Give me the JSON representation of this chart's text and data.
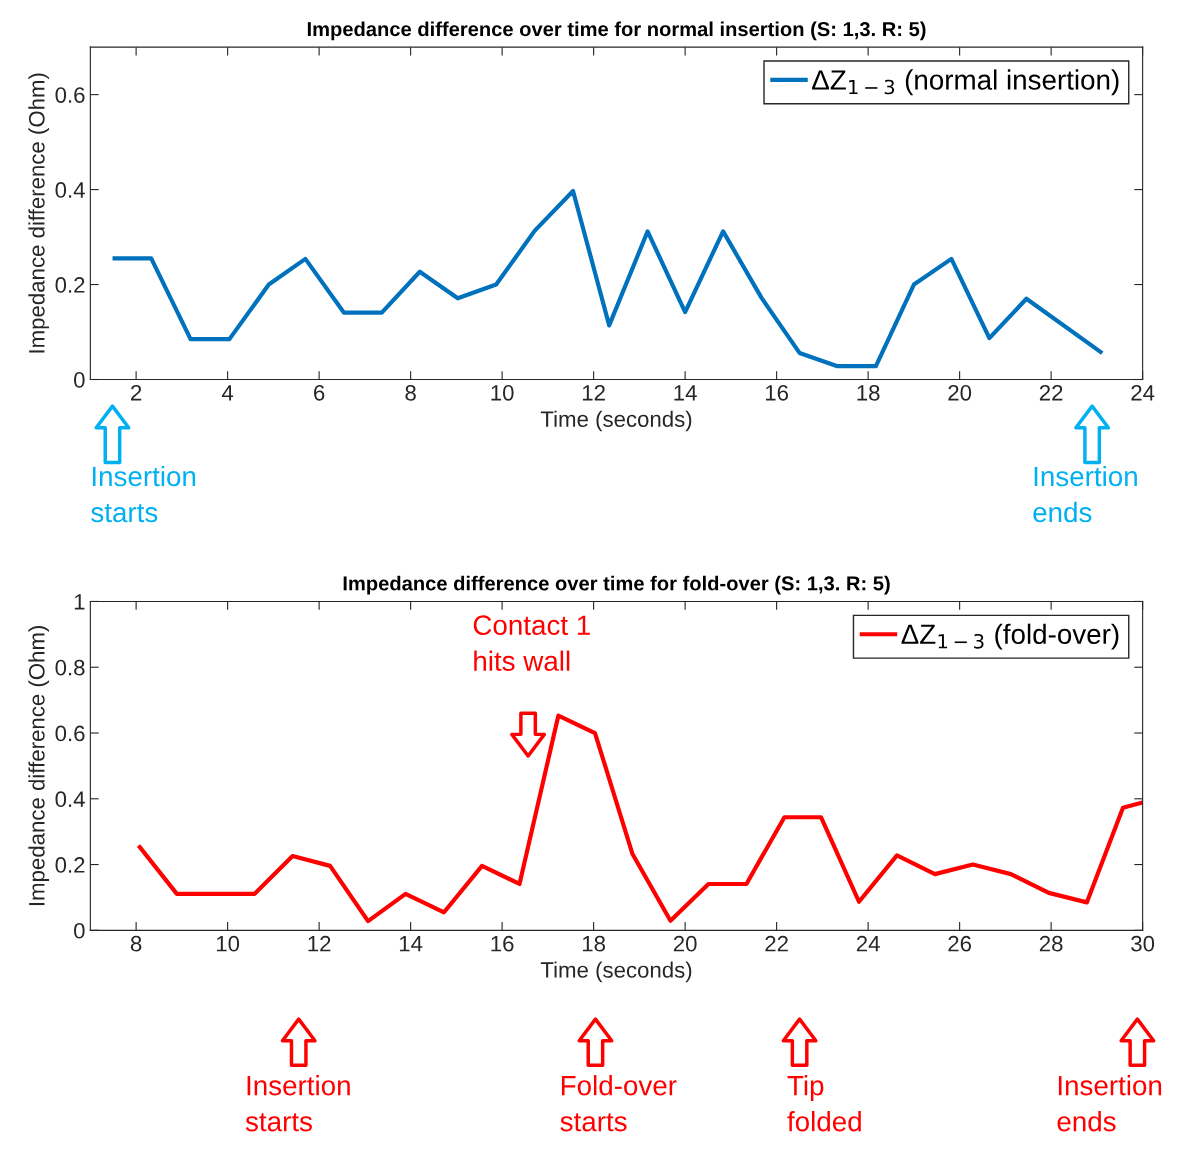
{
  "chart_data": [
    {
      "type": "line",
      "title": "Impedance difference over time for normal insertion (S: 1,3. R: 5)",
      "xlabel": "Time (seconds)",
      "ylabel": "Impedance difference (Ohm)",
      "x": [
        1.53,
        2.33,
        3.19,
        4.04,
        4.9,
        5.7,
        6.54,
        7.37,
        8.2,
        9.03,
        9.87,
        10.71,
        11.55,
        12.34,
        13.18,
        14.0,
        14.83,
        15.67,
        16.5,
        17.33,
        18.17,
        19.0,
        19.82,
        20.65,
        21.46,
        23.08
      ],
      "series": [
        {
          "name": "ΔZ$_{1−3}$ (normal insertion)",
          "color": "#0072bd",
          "values": [
            0.255,
            0.255,
            0.085,
            0.085,
            0.2,
            0.254,
            0.141,
            0.141,
            0.227,
            0.171,
            0.2,
            0.313,
            0.397,
            0.114,
            0.312,
            0.142,
            0.312,
            0.172,
            0.056,
            0.028,
            0.028,
            0.2,
            0.254,
            0.087,
            0.17,
            0.058
          ]
        }
      ],
      "xlim": [
        1,
        24
      ],
      "xticks": [
        2,
        4,
        6,
        8,
        10,
        12,
        14,
        16,
        18,
        20,
        22,
        24
      ],
      "ylim": [
        0,
        0.7
      ],
      "yticks": [
        0,
        0.2,
        0.4,
        0.6
      ],
      "legend": "top right",
      "grid": false,
      "line_style": "solid",
      "marker": "none",
      "annotations": [
        "Insertion\nstarts",
        "Insertion\nends"
      ]
    },
    {
      "type": "line",
      "title": "Impedance difference over time for fold-over (S: 1,3. R: 5)",
      "xlabel": "Time (seconds)",
      "ylabel": "Impedance difference (Ohm)",
      "x": [
        8.08,
        8.89,
        10.59,
        11.42,
        12.24,
        13.07,
        13.89,
        14.73,
        15.56,
        16.38,
        17.23,
        18.03,
        18.85,
        19.68,
        20.51,
        21.34,
        22.17,
        22.97,
        23.8,
        24.63,
        25.46,
        26.29,
        27.12,
        27.95,
        28.78,
        29.57,
        29.98
      ],
      "series": [
        {
          "name": "ΔZ$_{1−3}$ (fold-over)",
          "color": "#ff0000",
          "values": [
            0.253,
            0.111,
            0.111,
            0.226,
            0.196,
            0.028,
            0.111,
            0.055,
            0.196,
            0.141,
            0.653,
            0.6,
            0.232,
            0.029,
            0.141,
            0.141,
            0.344,
            0.344,
            0.087,
            0.228,
            0.171,
            0.2,
            0.171,
            0.114,
            0.085,
            0.373,
            0.388
          ]
        }
      ],
      "xlim": [
        7,
        30
      ],
      "xticks": [
        8,
        10,
        12,
        14,
        16,
        18,
        20,
        22,
        24,
        26,
        28,
        30
      ],
      "ylim": [
        0,
        1
      ],
      "yticks": [
        0,
        0.2,
        0.4,
        0.6,
        0.8,
        1
      ],
      "legend": "top right",
      "grid": false,
      "line_style": "solid",
      "marker": "none",
      "annotations": [
        "Contact 1\nhits wall",
        "Insertion\nstarts",
        "Fold-over\nstarts",
        "Tip\nfolded",
        "Insertion\nends"
      ]
    }
  ]
}
